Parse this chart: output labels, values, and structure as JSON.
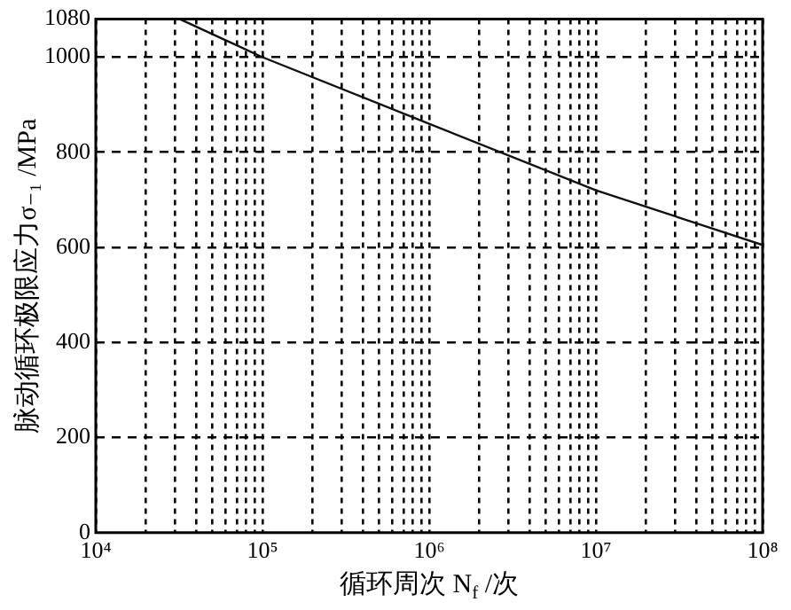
{
  "chart_data": {
    "type": "line",
    "xlabel": "循环周次 N$_{f}$ /次",
    "ylabel": "脉动循环极限应力σ₋₁ /MPa",
    "x": [
      32000,
      100000,
      1000000,
      10000000,
      100000000
    ],
    "series": [
      {
        "color": "#111111",
        "values": [
          1080,
          1000,
          860,
          720,
          605
        ]
      }
    ],
    "log": "x",
    "xlim": [
      10000,
      100000000
    ],
    "ylim": [
      0,
      1080
    ],
    "xticks": [
      {
        "value": 10000,
        "label": "10⁴"
      },
      {
        "value": 20000,
        "label": null
      },
      {
        "value": 30000,
        "label": null
      },
      {
        "value": 40000,
        "label": null
      },
      {
        "value": 50000,
        "label": null
      },
      {
        "value": 60000,
        "label": null
      },
      {
        "value": 70000,
        "label": null
      },
      {
        "value": 80000,
        "label": null
      },
      {
        "value": 90000,
        "label": null
      },
      {
        "value": 100000,
        "label": "10⁵"
      },
      {
        "value": 200000,
        "label": null
      },
      {
        "value": 300000,
        "label": null
      },
      {
        "value": 400000,
        "label": null
      },
      {
        "value": 500000,
        "label": null
      },
      {
        "value": 600000,
        "label": null
      },
      {
        "value": 700000,
        "label": null
      },
      {
        "value": 800000,
        "label": null
      },
      {
        "value": 900000,
        "label": null
      },
      {
        "value": 1000000,
        "label": "10⁶"
      },
      {
        "value": 2000000,
        "label": null
      },
      {
        "value": 3000000,
        "label": null
      },
      {
        "value": 4000000,
        "label": null
      },
      {
        "value": 5000000,
        "label": null
      },
      {
        "value": 6000000,
        "label": null
      },
      {
        "value": 7000000,
        "label": null
      },
      {
        "value": 8000000,
        "label": null
      },
      {
        "value": 9000000,
        "label": null
      },
      {
        "value": 10000000,
        "label": "10⁷"
      },
      {
        "value": 20000000,
        "label": null
      },
      {
        "value": 30000000,
        "label": null
      },
      {
        "value": 40000000,
        "label": null
      },
      {
        "value": 50000000,
        "label": null
      },
      {
        "value": 60000000,
        "label": null
      },
      {
        "value": 70000000,
        "label": null
      },
      {
        "value": 80000000,
        "label": null
      },
      {
        "value": 90000000,
        "label": null
      },
      {
        "value": 100000000,
        "label": "10⁸"
      }
    ],
    "yticks": [
      0,
      200,
      400,
      600,
      800,
      1000,
      1080
    ],
    "grid": true,
    "marker": "none",
    "line_style": "solid"
  }
}
